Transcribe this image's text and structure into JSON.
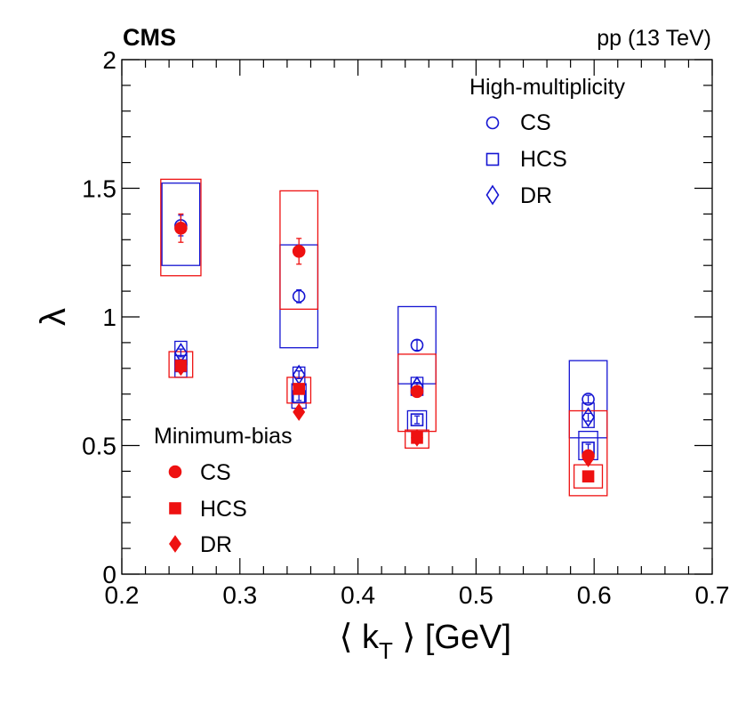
{
  "chart_data": {
    "type": "scatter",
    "experiment_label": "CMS",
    "energy_label": "pp (13 TeV)",
    "ylabel": "λ",
    "xlabel": "⟨ k",
    "xlabel_sub": "T",
    "xlabel_suffix": " ⟩ [GeV]",
    "xlim": [
      0.2,
      0.7
    ],
    "ylim": [
      0,
      2
    ],
    "xticks": [
      "0.2",
      "0.3",
      "0.4",
      "0.5",
      "0.6",
      "0.7"
    ],
    "yticks": [
      "0",
      "0.5",
      "1",
      "1.5",
      "2"
    ],
    "xtick_values": [
      0.2,
      0.3,
      0.4,
      0.5,
      0.6,
      0.7
    ],
    "ytick_values": [
      0,
      0.5,
      1,
      1.5,
      2
    ],
    "legend_high": {
      "title": "High-multiplicity",
      "entries": [
        {
          "label": "CS",
          "marker": "circle-open"
        },
        {
          "label": "HCS",
          "marker": "square-open"
        },
        {
          "label": "DR",
          "marker": "diamond-open"
        }
      ]
    },
    "legend_min": {
      "title": "Minimum-bias",
      "entries": [
        {
          "label": "CS",
          "marker": "circle-filled"
        },
        {
          "label": "HCS",
          "marker": "square-filled"
        },
        {
          "label": "DR",
          "marker": "diamond-filled"
        }
      ]
    },
    "colors": {
      "high": "#1414d2",
      "min": "#ee1111"
    },
    "series": [
      {
        "name": "High-multiplicity CS",
        "group": "high",
        "marker": "circle-open",
        "points": [
          {
            "x": 0.25,
            "y": 1.355,
            "err": 0.04,
            "sys_lo": 1.2,
            "sys_hi": 1.52,
            "sys_w": 0.016
          },
          {
            "x": 0.35,
            "y": 1.08,
            "err": 0.025,
            "sys_lo": 0.88,
            "sys_hi": 1.28,
            "sys_w": 0.016
          },
          {
            "x": 0.45,
            "y": 0.89,
            "err": 0.02,
            "sys_lo": 0.74,
            "sys_hi": 1.04,
            "sys_w": 0.016
          },
          {
            "x": 0.595,
            "y": 0.68,
            "err": 0.015,
            "sys_lo": 0.53,
            "sys_hi": 0.83,
            "sys_w": 0.016
          }
        ]
      },
      {
        "name": "High-multiplicity HCS",
        "group": "high",
        "marker": "square-open",
        "points": [
          {
            "x": 0.25,
            "y": 0.81,
            "err": 0.015,
            "sys_lo": 0.765,
            "sys_hi": 0.85,
            "sys_w": 0.005
          },
          {
            "x": 0.35,
            "y": 0.69,
            "err": 0.015,
            "sys_lo": 0.645,
            "sys_hi": 0.74,
            "sys_w": 0.006
          },
          {
            "x": 0.45,
            "y": 0.6,
            "err": 0.015,
            "sys_lo": 0.555,
            "sys_hi": 0.635,
            "sys_w": 0.008
          },
          {
            "x": 0.595,
            "y": 0.49,
            "err": 0.015,
            "sys_lo": 0.445,
            "sys_hi": 0.555,
            "sys_w": 0.008
          }
        ]
      },
      {
        "name": "High-multiplicity DR",
        "group": "high",
        "marker": "diamond-open",
        "points": [
          {
            "x": 0.25,
            "y": 0.86,
            "err": 0.015,
            "sys_lo": 0.815,
            "sys_hi": 0.905,
            "sys_w": 0.005
          },
          {
            "x": 0.35,
            "y": 0.775,
            "err": 0.015,
            "sys_lo": 0.735,
            "sys_hi": 0.805,
            "sys_w": 0.005
          },
          {
            "x": 0.45,
            "y": 0.73,
            "err": 0.015,
            "sys_lo": 0.695,
            "sys_hi": 0.765,
            "sys_w": 0.005
          },
          {
            "x": 0.595,
            "y": 0.61,
            "err": 0.015,
            "sys_lo": 0.57,
            "sys_hi": 0.665,
            "sys_w": 0.005
          }
        ]
      },
      {
        "name": "Minimum-bias CS",
        "group": "min",
        "marker": "circle-filled",
        "points": [
          {
            "x": 0.25,
            "y": 1.345,
            "err": 0.055,
            "sys_lo": 1.16,
            "sys_hi": 1.535,
            "sys_w": 0.017
          },
          {
            "x": 0.35,
            "y": 1.255,
            "err": 0.05,
            "sys_lo": 1.03,
            "sys_hi": 1.49,
            "sys_w": 0.016
          },
          {
            "x": 0.45,
            "y": 0.71,
            "err": 0.02,
            "sys_lo": 0.555,
            "sys_hi": 0.855,
            "sys_w": 0.016
          },
          {
            "x": 0.595,
            "y": 0.46,
            "err": 0.02,
            "sys_lo": 0.305,
            "sys_hi": 0.635,
            "sys_w": 0.016
          }
        ]
      },
      {
        "name": "Minimum-bias HCS",
        "group": "min",
        "marker": "square-filled",
        "points": [
          {
            "x": 0.25,
            "y": 0.81,
            "err": 0.015,
            "sys_lo": 0.765,
            "sys_hi": 0.865,
            "sys_w": 0.01
          },
          {
            "x": 0.35,
            "y": 0.72,
            "err": 0.015,
            "sys_lo": 0.665,
            "sys_hi": 0.765,
            "sys_w": 0.01
          },
          {
            "x": 0.45,
            "y": 0.53,
            "err": 0.01,
            "sys_lo": 0.49,
            "sys_hi": 0.56,
            "sys_w": 0.01
          },
          {
            "x": 0.595,
            "y": 0.38,
            "err": 0.01,
            "sys_lo": 0.335,
            "sys_hi": 0.425,
            "sys_w": 0.012
          }
        ]
      },
      {
        "name": "Minimum-bias DR",
        "group": "min",
        "marker": "diamond-filled",
        "points": [
          {
            "x": 0.25,
            "y": 0.805,
            "err": 0.015
          },
          {
            "x": 0.35,
            "y": 0.63,
            "err": 0.015
          },
          {
            "x": 0.45,
            "y": 0.53,
            "err": 0.01
          },
          {
            "x": 0.595,
            "y": 0.45,
            "err": 0.01
          }
        ]
      }
    ]
  }
}
